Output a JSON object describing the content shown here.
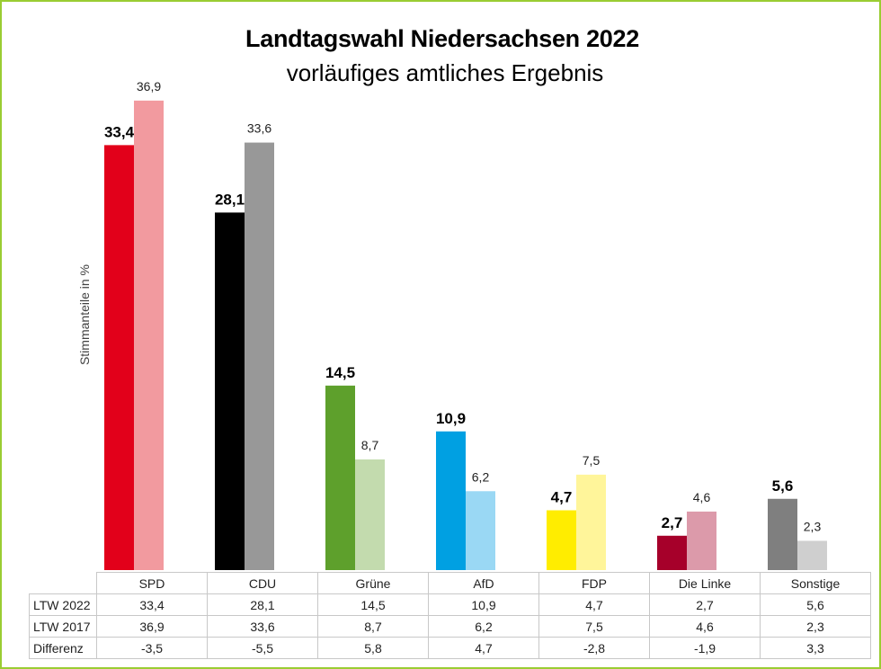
{
  "chart_data": {
    "type": "bar",
    "title": "Landtagswahl Niedersachsen 2022",
    "subtitle": "vorläufiges amtliches Ergebnis",
    "ylabel": "Stimmanteile in %",
    "xlabel": "",
    "ylim": [
      0,
      37
    ],
    "grid": false,
    "categories": [
      "SPD",
      "CDU",
      "Grüne",
      "AfD",
      "FDP",
      "Die Linke",
      "Sonstige"
    ],
    "series": [
      {
        "name": "LTW 2022",
        "values": [
          33.4,
          28.1,
          14.5,
          10.9,
          4.7,
          2.7,
          5.6
        ],
        "labels": [
          "33,4",
          "28,1",
          "14,5",
          "10,9",
          "4,7",
          "2,7",
          "5,6"
        ],
        "colors": [
          "#e2001a",
          "#000000",
          "#5ea02c",
          "#00a0e2",
          "#ffed00",
          "#a6002a",
          "#7f7f7f"
        ]
      },
      {
        "name": "LTW 2017",
        "values": [
          36.9,
          33.6,
          8.7,
          6.2,
          7.5,
          4.6,
          2.3
        ],
        "labels": [
          "36,9",
          "33,6",
          "8,7",
          "6,2",
          "7,5",
          "4,6",
          "2,3"
        ],
        "colors": [
          "#f29a9f",
          "#989898",
          "#c3dbae",
          "#9ad8f4",
          "#fff59a",
          "#dc9aaa",
          "#cfcfcf"
        ]
      }
    ],
    "table": {
      "rows": [
        {
          "label": "LTW 2022",
          "cells": [
            "33,4",
            "28,1",
            "14,5",
            "10,9",
            "4,7",
            "2,7",
            "5,6"
          ]
        },
        {
          "label": "LTW 2017",
          "cells": [
            "36,9",
            "33,6",
            "8,7",
            "6,2",
            "7,5",
            "4,6",
            "2,3"
          ]
        },
        {
          "label": "Differenz",
          "cells": [
            "-3,5",
            "-5,5",
            "5,8",
            "4,7",
            "-2,8",
            "-1,9",
            "3,3"
          ]
        }
      ]
    }
  }
}
